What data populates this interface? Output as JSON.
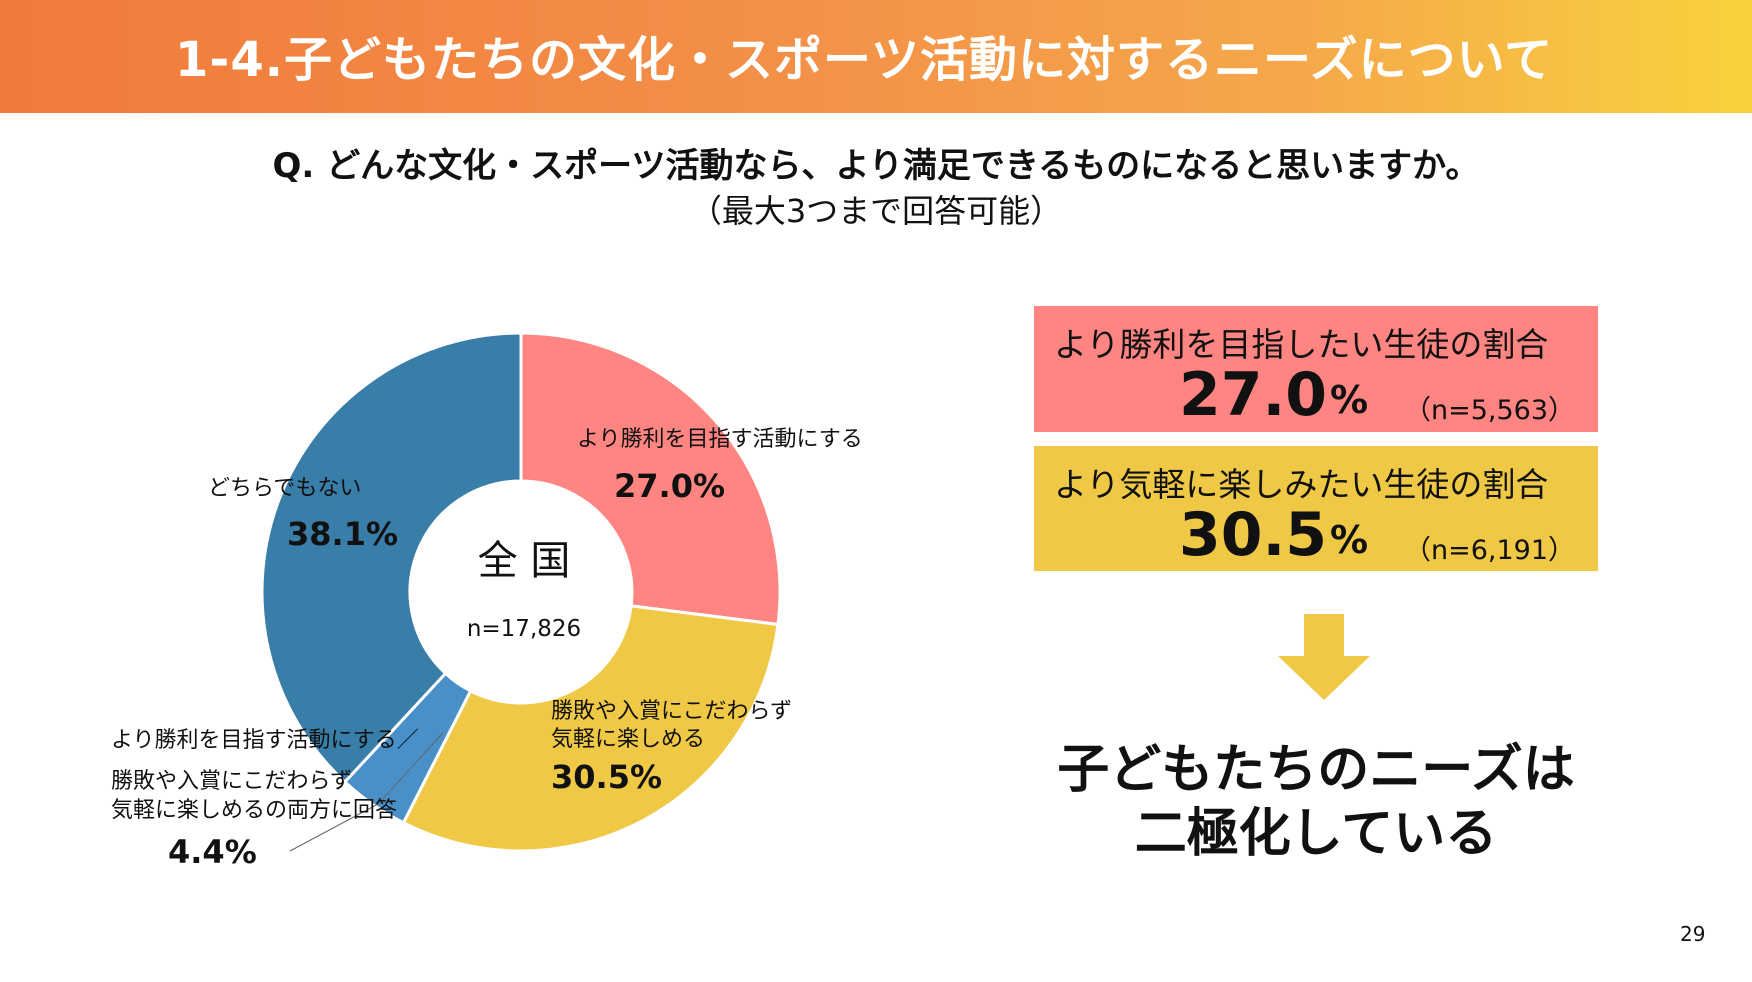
{
  "header": {
    "title": "1-4.子どもたちの文化・スポーツ活動に対するニーズについて"
  },
  "question": {
    "text": "Q.  どんな文化・スポーツ活動なら、より満足できるものになると思いますか。",
    "note": "（最大3つまで回答可能）"
  },
  "chart_data": {
    "type": "pie",
    "style": "donut",
    "center_label": "全 国",
    "center_n": "n=17,826",
    "slices": [
      {
        "label": "より勝利を目指す活動にする",
        "value": 27.0,
        "display": "27.0%",
        "color": "#ff8582"
      },
      {
        "label": "勝敗や入賞にこだわらず気軽に楽しめる",
        "label_lines": [
          "勝敗や入賞にこだわらず",
          "気軽に楽しめる"
        ],
        "value": 30.5,
        "display": "30.5%",
        "color": "#efc846"
      },
      {
        "label": "より勝利を目指す活動にする／勝敗や入賞にこだわらず気軽に楽しめるの両方に回答",
        "label_lines": [
          "より勝利を目指す活動にする／",
          "勝敗や入賞にこだわらず",
          "気軽に楽しめるの両方に回答"
        ],
        "value": 4.4,
        "display": "4.4%",
        "color": "#4a90c8"
      },
      {
        "label": "どちらでもない",
        "value": 38.1,
        "display": "38.1%",
        "color": "#397ea8"
      }
    ]
  },
  "summary": {
    "win": {
      "label": "より勝利を目指したい生徒の割合",
      "value": "27.0",
      "unit": "%",
      "n": "（n=5,563）",
      "color": "#ff8582"
    },
    "casual": {
      "label": "より気軽に楽しみたい生徒の割合",
      "value": "30.5",
      "unit": "%",
      "n": "（n=6,191）",
      "color": "#efc846"
    },
    "arrow_icon": "arrow-down-icon",
    "conclusion_line1": "子どもたちのニーズは",
    "conclusion_line2": "二極化している"
  },
  "page_number": "29"
}
